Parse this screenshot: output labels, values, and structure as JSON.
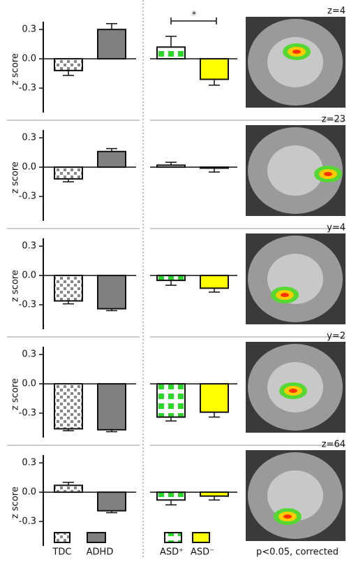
{
  "chart_data": [
    {
      "type": "bar",
      "ylabel": "z score",
      "values": [
        -0.12,
        0.3
      ],
      "errors": [
        0.05,
        0.06
      ],
      "ylim": [
        -0.55,
        0.38
      ],
      "yticks": [
        0.3,
        {
          "value": 0,
          "label": "0.0"
        },
        -0.3
      ]
    },
    {
      "type": "bar",
      "values": [
        0.12,
        -0.21
      ],
      "errors": [
        0.11,
        0.06
      ],
      "ylim": [
        -0.55,
        0.38
      ]
    },
    {
      "type": "bar",
      "ylabel": "z score",
      "values": [
        -0.12,
        0.16
      ],
      "errors": [
        0.03,
        0.03
      ],
      "ylim": [
        -0.55,
        0.38
      ],
      "yticks": [
        0.3,
        {
          "value": 0,
          "label": "0.0"
        },
        -0.3
      ]
    },
    {
      "type": "bar",
      "values": [
        0.02,
        -0.01
      ],
      "errors": [
        0.03,
        0.04
      ],
      "ylim": [
        -0.55,
        0.38
      ]
    },
    {
      "type": "bar",
      "ylabel": "z score",
      "values": [
        -0.26,
        -0.34
      ],
      "errors": [
        0.03,
        0.02
      ],
      "ylim": [
        -0.55,
        0.38
      ],
      "yticks": [
        0.3,
        {
          "value": 0,
          "label": "0.0"
        },
        -0.3
      ]
    },
    {
      "type": "bar",
      "values": [
        -0.05,
        -0.13
      ],
      "errors": [
        0.05,
        0.04
      ],
      "ylim": [
        -0.55,
        0.38
      ]
    },
    {
      "type": "bar",
      "ylabel": "z score",
      "values": [
        -0.46,
        -0.47
      ],
      "errors": [
        0.02,
        0.02
      ],
      "ylim": [
        -0.55,
        0.38
      ],
      "yticks": [
        0.3,
        {
          "value": 0,
          "label": "0.0"
        },
        -0.3
      ]
    },
    {
      "type": "bar",
      "values": [
        -0.34,
        -0.29
      ],
      "errors": [
        0.04,
        0.05
      ],
      "ylim": [
        -0.55,
        0.38
      ]
    },
    {
      "type": "bar",
      "ylabel": "z score",
      "values": [
        0.07,
        -0.19
      ],
      "errors": [
        0.03,
        0.02
      ],
      "ylim": [
        -0.55,
        0.38
      ],
      "yticks": [
        0.3,
        {
          "value": 0,
          "label": "0.0"
        },
        -0.3
      ]
    },
    {
      "type": "bar",
      "values": [
        -0.08,
        -0.04
      ],
      "errors": [
        0.05,
        0.04
      ],
      "ylim": [
        -0.55,
        0.38
      ]
    }
  ],
  "figure": {
    "significance": "*",
    "slices": [
      "z=4",
      "z=23",
      "y=4",
      "y=2",
      "z=64"
    ],
    "legend": [
      "TDC",
      "ADHD",
      "ASD⁺",
      "ASD⁻"
    ],
    "threshold": "p<0.05, corrected"
  }
}
